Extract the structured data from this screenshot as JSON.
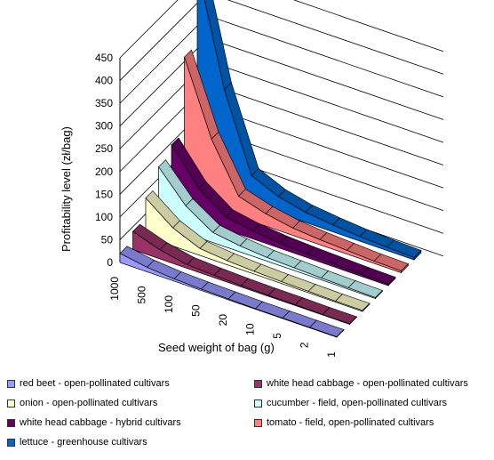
{
  "chart_data": {
    "type": "area",
    "subtype": "3d-area",
    "title": "",
    "xlabel": "Seed weight of bag (g)",
    "ylabel": "Profitability level (zł/bag)",
    "ylim": [
      0,
      450
    ],
    "yticks": [
      0,
      50,
      100,
      150,
      200,
      250,
      300,
      350,
      400,
      450
    ],
    "grid": true,
    "legend_position": "bottom",
    "categories": [
      "1000",
      "500",
      "100",
      "50",
      "20",
      "10",
      "5",
      "2",
      "1"
    ],
    "series": [
      {
        "name": "red beet - open-pollinated cultivars",
        "color": "#9999ff",
        "values": [
          20,
          10,
          5,
          3,
          2,
          1,
          1,
          1,
          1
        ]
      },
      {
        "name": "white head cabbage - open-pollinated cultivars",
        "color": "#993366",
        "values": [
          40,
          20,
          8,
          5,
          3,
          2,
          2,
          1,
          1
        ]
      },
      {
        "name": "onion - open-pollinated cultivars",
        "color": "#ffffcc",
        "values": [
          85,
          40,
          15,
          9,
          6,
          4,
          3,
          2,
          2
        ]
      },
      {
        "name": "cucumber - field, open-pollinated cultivars",
        "color": "#ccffff",
        "values": [
          125,
          60,
          22,
          13,
          8,
          6,
          4,
          3,
          2
        ]
      },
      {
        "name": "white head cabbage - hybrid cultivars",
        "color": "#660066",
        "values": [
          145,
          70,
          28,
          17,
          11,
          8,
          6,
          4,
          3
        ]
      },
      {
        "name": "tomato - field, open-pollinated cultivars",
        "color": "#ff8080",
        "values": [
          310,
          150,
          45,
          27,
          16,
          11,
          8,
          5,
          4
        ]
      },
      {
        "name": "lettuce - greenhouse cultivars",
        "color": "#0066cc",
        "values": [
          480,
          230,
          62,
          36,
          22,
          15,
          10,
          7,
          5
        ]
      }
    ]
  }
}
